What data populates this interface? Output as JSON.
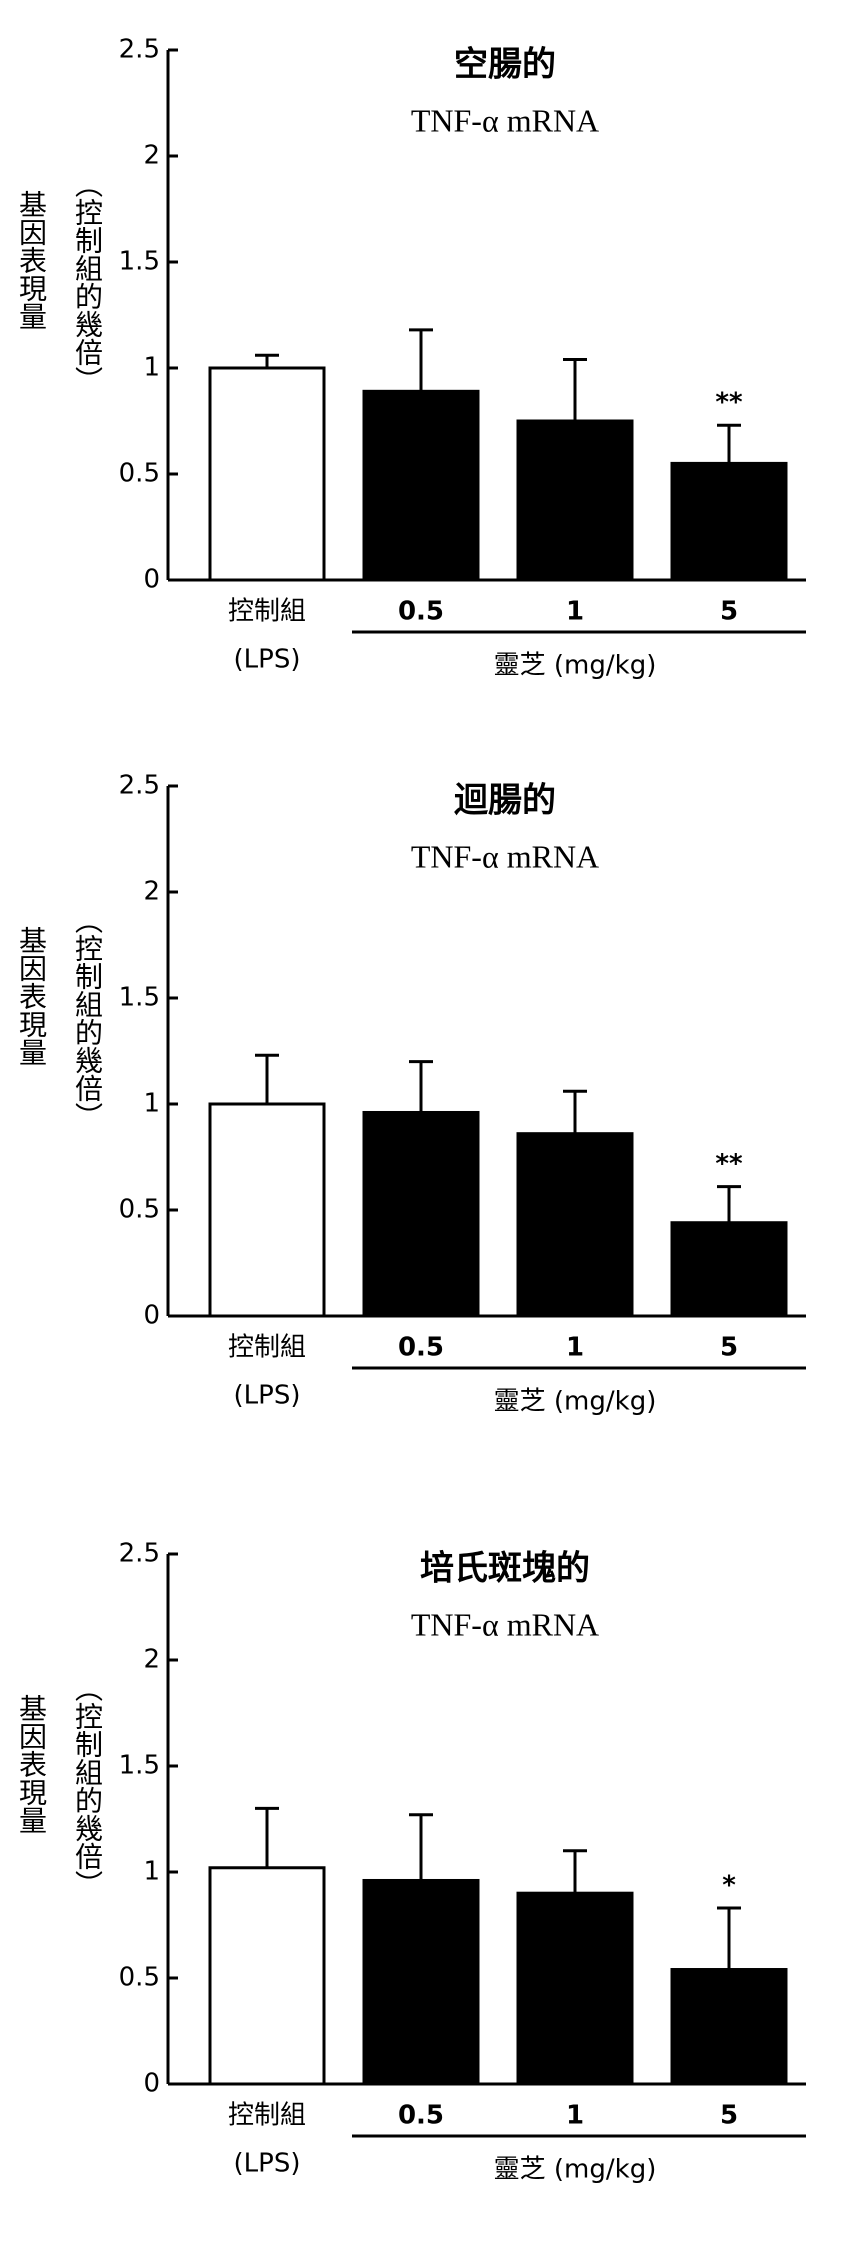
{
  "chart_data": [
    {
      "type": "bar",
      "title": "空腸的",
      "subtitle": "TNF-α mRNA",
      "ylabel": "基因表現量",
      "ylabel_note": "（控制組的幾倍）",
      "categories": [
        "控制組",
        "0.5",
        "1",
        "5"
      ],
      "control_sublabel": "(LPS)",
      "group_label": "靈芝 (mg/kg)",
      "values": [
        1.0,
        0.89,
        0.75,
        0.55
      ],
      "errors": [
        0.06,
        0.29,
        0.29,
        0.18
      ],
      "value_annotations": [
        null,
        null,
        null,
        "**"
      ],
      "colors": [
        "#ffffff",
        "#000000",
        "#000000",
        "#000000"
      ],
      "ylim": [
        0,
        2.5
      ],
      "yticks": [
        0,
        0.5,
        1,
        1.5,
        2,
        2.5
      ]
    },
    {
      "type": "bar",
      "title": "迴腸的",
      "subtitle": "TNF-α mRNA",
      "ylabel": "基因表現量",
      "ylabel_note": "（控制組的幾倍）",
      "categories": [
        "控制組",
        "0.5",
        "1",
        "5"
      ],
      "control_sublabel": "(LPS)",
      "group_label": "靈芝 (mg/kg)",
      "values": [
        1.0,
        0.96,
        0.86,
        0.44
      ],
      "errors": [
        0.23,
        0.24,
        0.2,
        0.17
      ],
      "value_annotations": [
        null,
        null,
        null,
        "**"
      ],
      "colors": [
        "#ffffff",
        "#000000",
        "#000000",
        "#000000"
      ],
      "ylim": [
        0,
        2.5
      ],
      "yticks": [
        0,
        0.5,
        1,
        1.5,
        2,
        2.5
      ]
    },
    {
      "type": "bar",
      "title": "培氏斑塊的",
      "subtitle": "TNF-α mRNA",
      "ylabel": "基因表現量",
      "ylabel_note": "（控制組的幾倍）",
      "categories": [
        "控制組",
        "0.5",
        "1",
        "5"
      ],
      "control_sublabel": "(LPS)",
      "group_label": "靈芝 (mg/kg)",
      "values": [
        1.02,
        0.96,
        0.9,
        0.54
      ],
      "errors": [
        0.28,
        0.31,
        0.2,
        0.29
      ],
      "value_annotations": [
        null,
        null,
        null,
        "*"
      ],
      "colors": [
        "#ffffff",
        "#000000",
        "#000000",
        "#000000"
      ],
      "ylim": [
        0,
        2.5
      ],
      "yticks": [
        0,
        0.5,
        1,
        1.5,
        2,
        2.5
      ]
    }
  ]
}
